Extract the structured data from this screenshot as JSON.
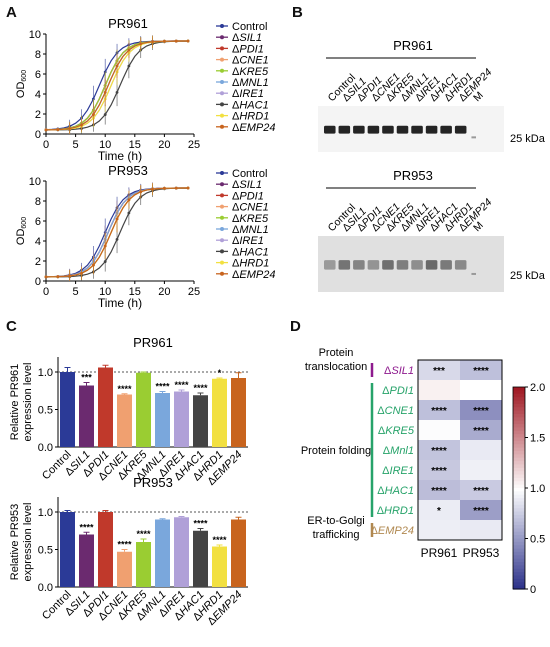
{
  "panels": {
    "A": "A",
    "B": "B",
    "C": "C",
    "D": "D"
  },
  "legend_items": [
    {
      "label": "Control",
      "color": "#2b3a97"
    },
    {
      "label": "ΔSIL1",
      "color": "#6b2a6f"
    },
    {
      "label": "ΔPDI1",
      "color": "#c0392b"
    },
    {
      "label": "ΔCNE1",
      "color": "#f0a070"
    },
    {
      "label": "ΔKRE5",
      "color": "#9acd32"
    },
    {
      "label": "ΔMNL1",
      "color": "#7aa7dc"
    },
    {
      "label": "ΔIRE1",
      "color": "#b0a0d8"
    },
    {
      "label": "ΔHAC1",
      "color": "#444444"
    },
    {
      "label": "ΔHRD1",
      "color": "#f2e040"
    },
    {
      "label": "ΔEMP24",
      "color": "#c8641e"
    }
  ],
  "chart_data": [
    {
      "type": "line",
      "title": "PR961",
      "xlabel": "Time (h)",
      "ylabel": "OD600",
      "xlim": [
        0,
        25
      ],
      "ylim": [
        0,
        10
      ],
      "xticks": [
        0,
        5,
        10,
        15,
        20,
        25
      ],
      "yticks": [
        0,
        2,
        4,
        6,
        8,
        10
      ],
      "x": [
        0,
        1,
        2,
        3,
        4,
        5,
        6,
        7,
        8,
        9,
        10,
        11,
        12,
        13,
        14,
        15,
        16,
        17,
        18,
        19,
        20,
        21,
        22,
        23,
        24
      ],
      "midpoints": [
        9,
        10,
        10,
        10.5,
        10,
        10.5,
        11,
        12.5,
        11,
        10.5
      ]
    },
    {
      "type": "line",
      "title": "PR953",
      "xlabel": "Time (h)",
      "ylabel": "OD600",
      "xlim": [
        0,
        25
      ],
      "ylim": [
        0,
        10
      ],
      "xticks": [
        0,
        5,
        10,
        15,
        20,
        25
      ],
      "yticks": [
        0,
        2,
        4,
        6,
        8,
        10
      ],
      "x": [
        0,
        1,
        2,
        3,
        4,
        5,
        6,
        7,
        8,
        9,
        10,
        11,
        12,
        13,
        14,
        15,
        16,
        17,
        18,
        19,
        20,
        21,
        22,
        23,
        24
      ],
      "midpoints": [
        10,
        10.5,
        10.5,
        11,
        11,
        10.5,
        11,
        12.5,
        11,
        11
      ]
    },
    {
      "type": "bar",
      "title": "PR961",
      "ylabel": "Relative PR961 expression level",
      "ylim": [
        0,
        1.2
      ],
      "yticks": [
        "0.0",
        "0.5",
        "1.0"
      ],
      "categories": [
        "Control",
        "ΔSIL1",
        "ΔPDI1",
        "ΔCNE1",
        "ΔKRE5",
        "ΔMNL1",
        "ΔIRE1",
        "ΔHAC1",
        "ΔHRD1",
        "ΔEMP24"
      ],
      "values": [
        1.0,
        0.82,
        1.06,
        0.7,
        0.99,
        0.72,
        0.74,
        0.69,
        0.91,
        0.92
      ],
      "errors": [
        0.06,
        0.04,
        0.03,
        0.01,
        0.01,
        0.02,
        0.02,
        0.03,
        0.01,
        0.07
      ],
      "significance": [
        "",
        "***",
        "",
        "****",
        "",
        "****",
        "****",
        "****",
        "*",
        ""
      ]
    },
    {
      "type": "bar",
      "title": "PR953",
      "ylabel": "Relative PR953 expression level",
      "ylim": [
        0,
        1.2
      ],
      "yticks": [
        "0.0",
        "0.5",
        "1.0"
      ],
      "categories": [
        "Control",
        "ΔSIL1",
        "ΔPDI1",
        "ΔCNE1",
        "ΔKRE5",
        "ΔMNL1",
        "ΔIRE1",
        "ΔHAC1",
        "ΔHRD1",
        "ΔEMP24"
      ],
      "values": [
        1.0,
        0.7,
        1.0,
        0.47,
        0.6,
        0.9,
        0.93,
        0.75,
        0.54,
        0.9
      ],
      "errors": [
        0.02,
        0.03,
        0.02,
        0.03,
        0.04,
        0.01,
        0.01,
        0.03,
        0.02,
        0.03
      ],
      "significance": [
        "",
        "****",
        "",
        "****",
        "****",
        "",
        "",
        "****",
        "****",
        ""
      ]
    },
    {
      "type": "heatmap",
      "columns": [
        "PR961",
        "PR953"
      ],
      "rows": [
        "ΔSIL1",
        "ΔPDI1",
        "ΔCNE1",
        "ΔKRE5",
        "ΔMnl1",
        "ΔIRE1",
        "ΔHAC1",
        "ΔHRD1",
        "ΔEMP24"
      ],
      "values": [
        [
          0.82,
          0.7
        ],
        [
          1.06,
          1.0
        ],
        [
          0.7,
          0.47
        ],
        [
          0.99,
          0.6
        ],
        [
          0.72,
          0.9
        ],
        [
          0.74,
          0.93
        ],
        [
          0.69,
          0.75
        ],
        [
          0.91,
          0.54
        ],
        [
          0.92,
          0.9
        ]
      ],
      "significance": [
        [
          "***",
          "****"
        ],
        [
          "",
          ""
        ],
        [
          "****",
          "****"
        ],
        [
          "",
          "****"
        ],
        [
          "****",
          ""
        ],
        [
          "****",
          ""
        ],
        [
          "****",
          "****"
        ],
        [
          "*",
          "****"
        ],
        [
          "",
          ""
        ]
      ],
      "colorbar": {
        "min": 0,
        "max": 2.0,
        "ticks": [
          "2.0",
          "1.5",
          "1.0",
          "0.5",
          "0"
        ]
      },
      "groups": [
        {
          "label": "Protein translocation",
          "color": "#8e1a8e"
        },
        {
          "label": "Protein folding",
          "color": "#27a36a"
        },
        {
          "label": "ER-to-Golgi trafficking",
          "color": "#b08850"
        }
      ]
    }
  ],
  "blot": {
    "top_title": "PR961",
    "bottom_title": "PR953",
    "lanes": [
      "Control",
      "ΔSIL1",
      "ΔPDI1",
      "ΔCNE1",
      "ΔKRE5",
      "ΔMNL1",
      "ΔIRE1",
      "ΔHAC1",
      "ΔHRD1",
      "ΔEMP24",
      "M"
    ],
    "marker": "25 kDa"
  }
}
